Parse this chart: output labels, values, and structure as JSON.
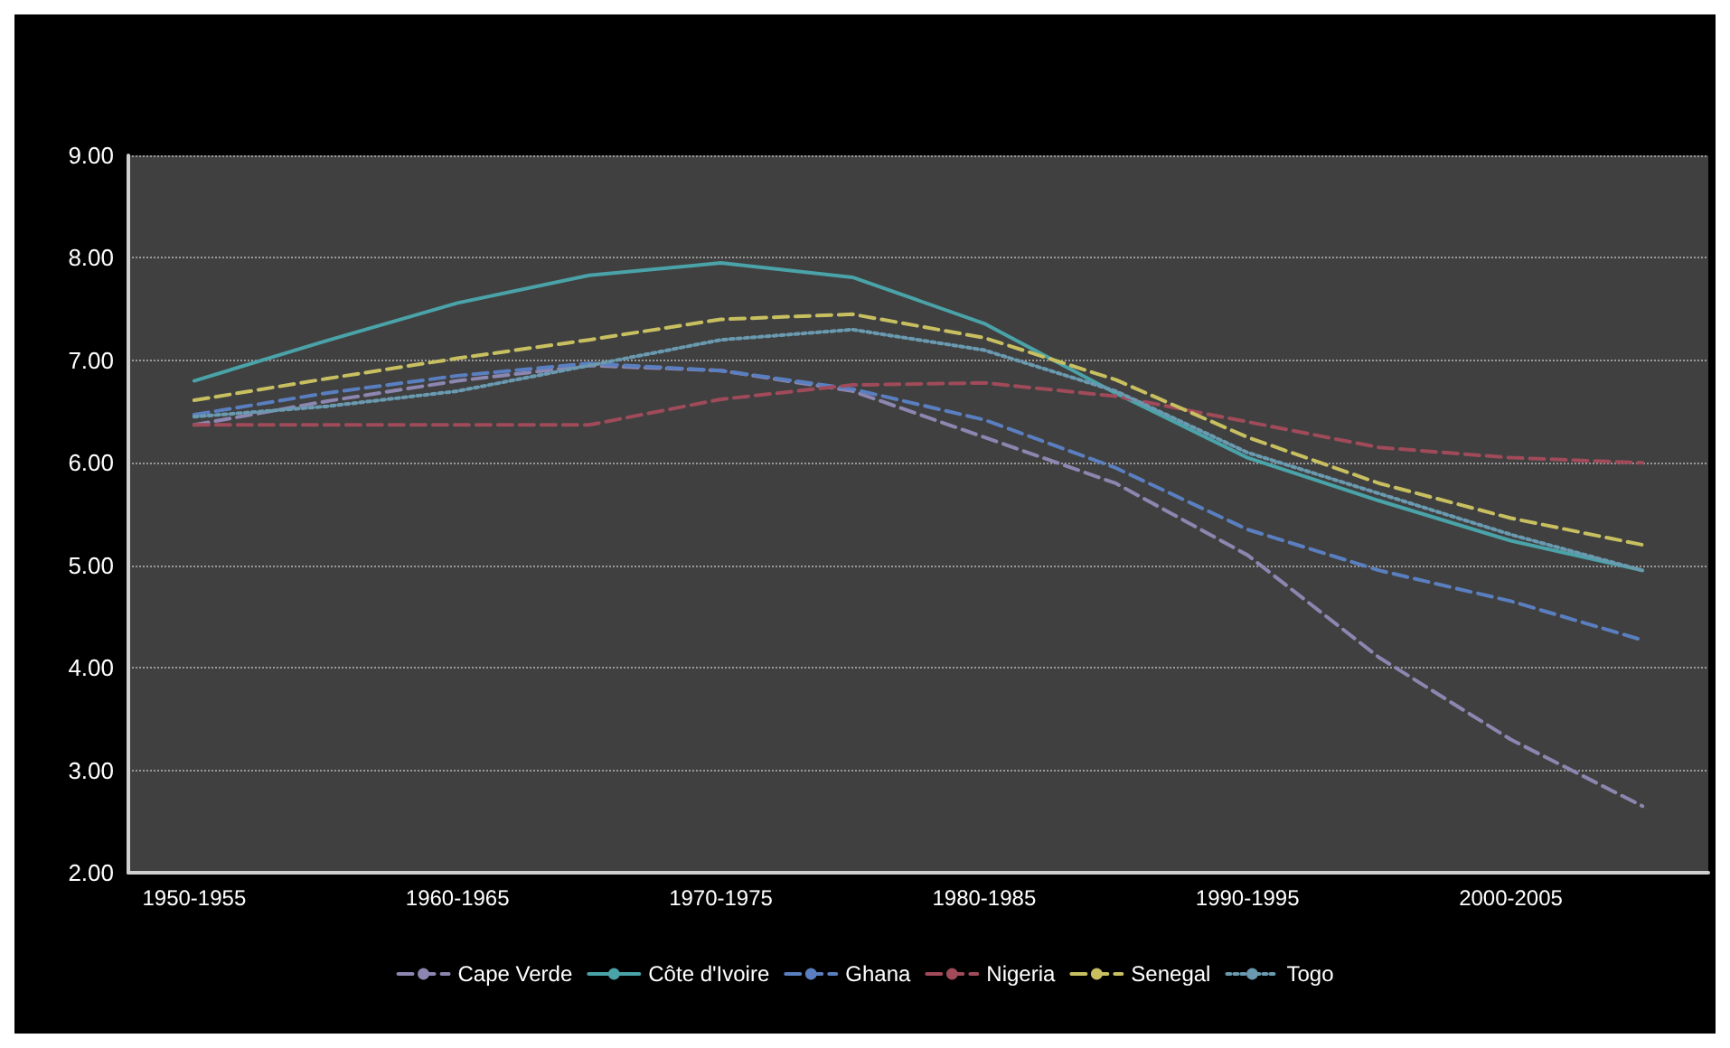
{
  "chart_data": {
    "type": "line",
    "categories": [
      "1950-1955",
      null,
      "1960-1965",
      null,
      "1970-1975",
      null,
      "1980-1985",
      null,
      "1990-1995",
      null,
      "2000-2005",
      null
    ],
    "series": [
      {
        "name": "Cape Verde",
        "color": "#8c86b0",
        "line_style": "dashed",
        "values": [
          6.37,
          6.6,
          6.8,
          6.95,
          6.9,
          6.7,
          6.25,
          5.8,
          5.1,
          4.1,
          3.3,
          2.65
        ]
      },
      {
        "name": "Côte d'Ivoire",
        "color": "#4aa3a8",
        "line_style": "solid",
        "values": [
          6.8,
          7.19,
          7.56,
          7.83,
          7.95,
          7.81,
          7.36,
          6.68,
          6.05,
          5.63,
          5.24,
          4.95
        ]
      },
      {
        "name": "Ghana",
        "color": "#5a7fc0",
        "line_style": "dashed",
        "values": [
          6.47,
          6.68,
          6.85,
          6.97,
          6.9,
          6.72,
          6.42,
          5.95,
          5.35,
          4.95,
          4.65,
          4.27
        ]
      },
      {
        "name": "Nigeria",
        "color": "#a04a5a",
        "line_style": "dashed",
        "values": [
          6.37,
          6.37,
          6.37,
          6.37,
          6.62,
          6.76,
          6.78,
          6.65,
          6.4,
          6.15,
          6.05,
          6.0
        ]
      },
      {
        "name": "Senegal",
        "color": "#c8c060",
        "line_style": "dashed",
        "values": [
          6.61,
          6.82,
          7.02,
          7.2,
          7.4,
          7.45,
          7.22,
          6.81,
          6.25,
          5.8,
          5.46,
          5.2
        ]
      },
      {
        "name": "Togo",
        "color": "#6a9ab0",
        "line_style": "dotted",
        "values": [
          6.45,
          6.55,
          6.7,
          6.95,
          7.2,
          7.3,
          7.1,
          6.7,
          6.1,
          5.7,
          5.3,
          4.95
        ]
      }
    ],
    "ylim": [
      2,
      9
    ],
    "yticks": [
      {
        "value": 2,
        "label": "2.00"
      },
      {
        "value": 3,
        "label": "3.00"
      },
      {
        "value": 4,
        "label": "4.00"
      },
      {
        "value": 5,
        "label": "5.00"
      },
      {
        "value": 6,
        "label": "6.00"
      },
      {
        "value": 7,
        "label": "7.00"
      },
      {
        "value": 8,
        "label": "8.00"
      },
      {
        "value": 9,
        "label": "9.00"
      }
    ],
    "grid": "y",
    "legend": "bottom",
    "marker": "none"
  }
}
